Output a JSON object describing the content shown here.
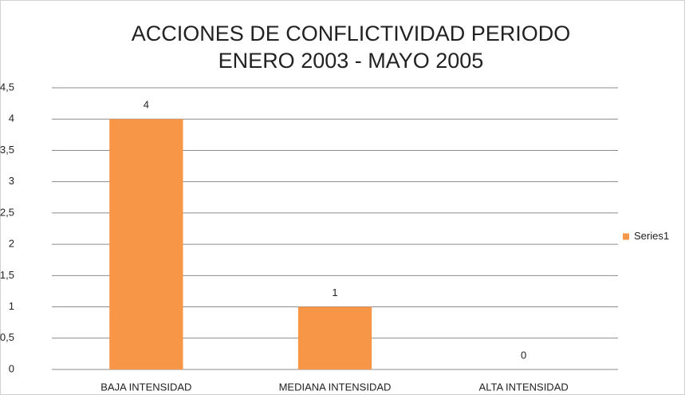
{
  "chart_data": {
    "type": "bar",
    "title": [
      "ACCIONES DE CONFLICTIVIDAD PERIODO",
      "ENERO 2003 - MAYO 2005"
    ],
    "categories": [
      "BAJA INTENSIDAD",
      "MEDIANA INTENSIDAD",
      "ALTA INTENSIDAD"
    ],
    "series": [
      {
        "name": "Series1",
        "color": "#f79646",
        "values": [
          4,
          1,
          0
        ]
      }
    ],
    "ylim": [
      0,
      4.5
    ],
    "yticks": [
      0,
      {
        "value": 0.5,
        "label": "0,5"
      },
      1,
      {
        "value": 1.5,
        "label": "1,5"
      },
      2,
      {
        "value": 2.5,
        "label": "2,5"
      },
      3,
      {
        "value": 3.5,
        "label": "3,5"
      },
      4,
      {
        "value": 4.5,
        "label": "4,5"
      }
    ],
    "grid": true,
    "legend": "right"
  }
}
